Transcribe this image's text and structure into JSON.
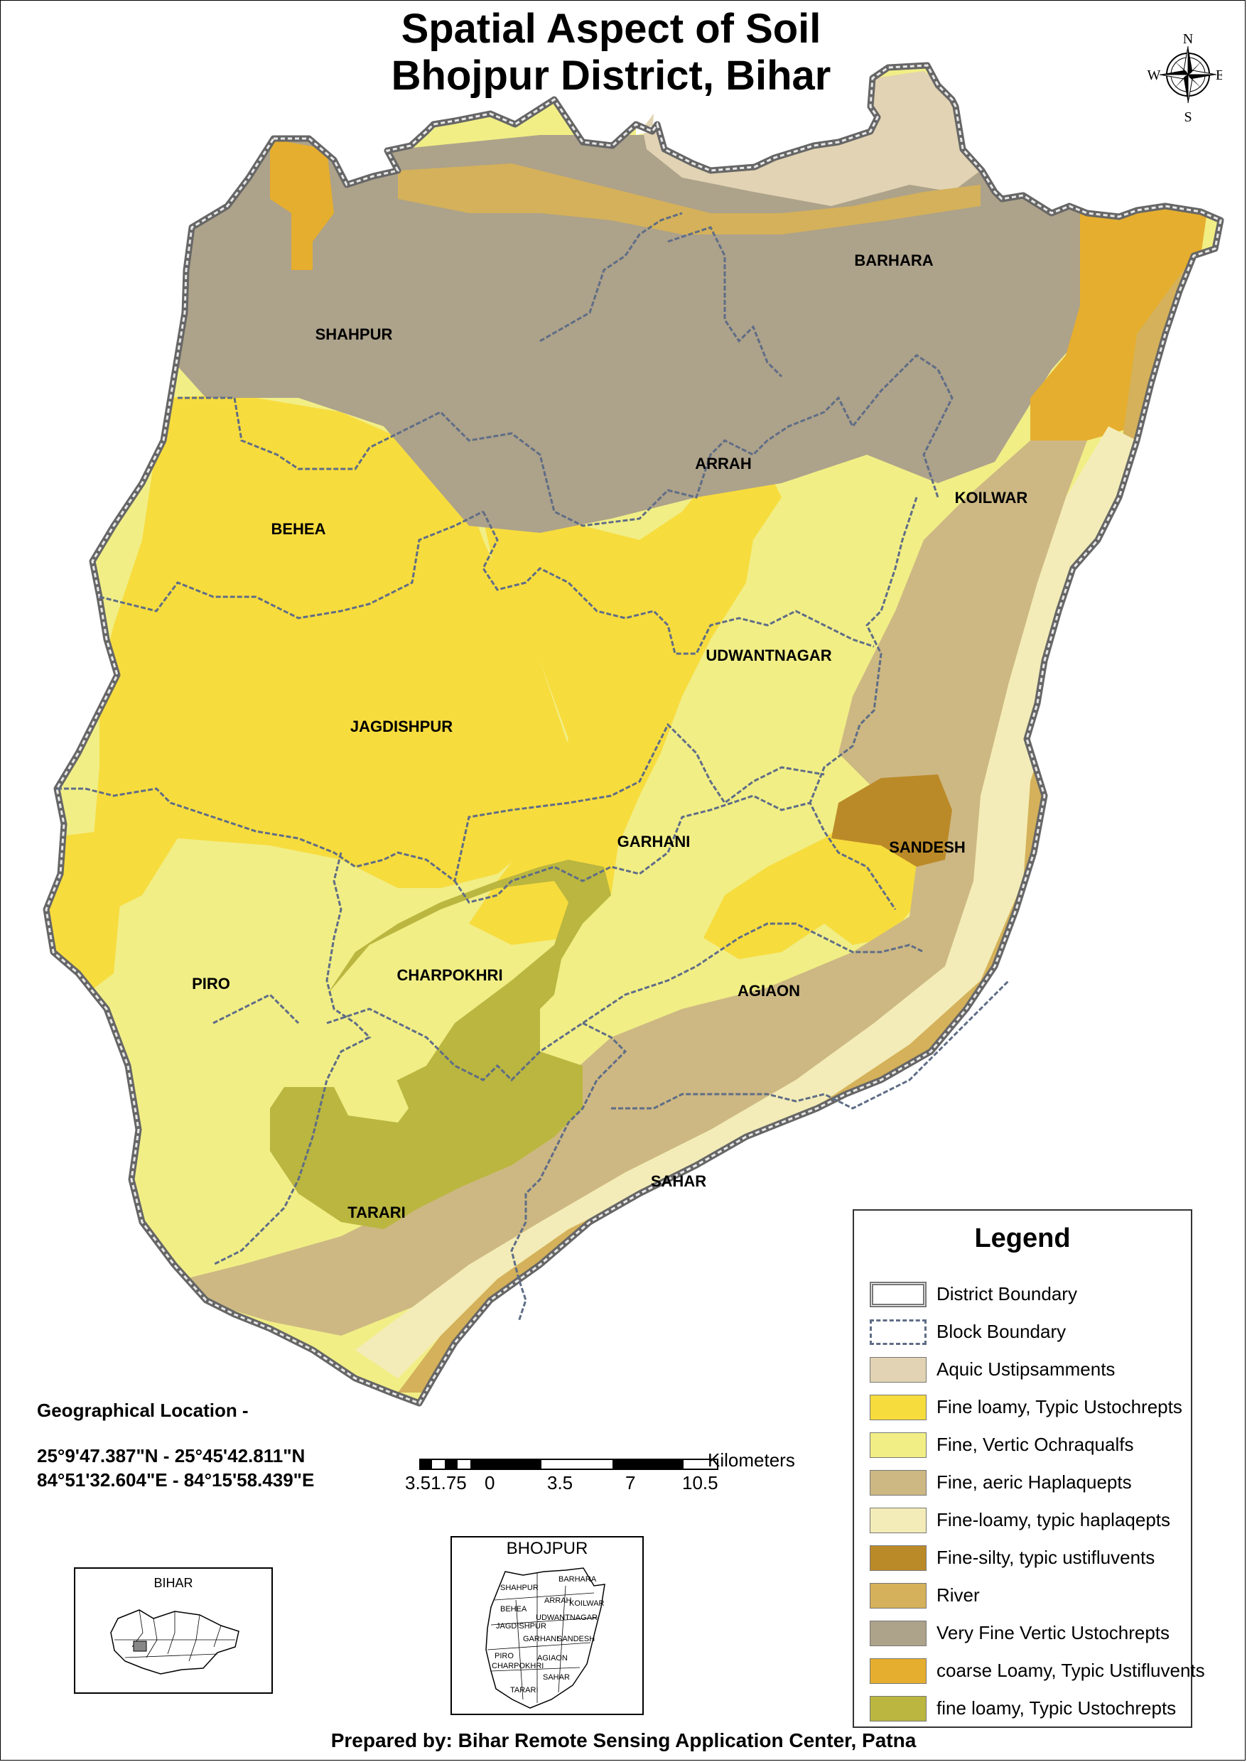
{
  "title_line1": "Spatial Aspect of Soil",
  "title_line2": "Bhojpur District, Bihar",
  "compass": {
    "n": "N",
    "s": "S",
    "e": "E",
    "w": "W"
  },
  "blocks": [
    "SHAHPUR",
    "BARHARA",
    "ARRAH",
    "KOILWAR",
    "BEHEA",
    "UDWANTNAGAR",
    "JAGDISHPUR",
    "GARHANI",
    "SANDESH",
    "PIRO",
    "CHARPOKHRI",
    "AGIAON",
    "SAHAR",
    "TARARI"
  ],
  "colors": {
    "aquic": "#e1d3b3",
    "fine_loamy_typic": "#f7dc3e",
    "fine_vertic": "#f1ee86",
    "aeric": "#cdb883",
    "fine_loamy_haplaqepts": "#f3ecb8",
    "silty": "#bb8a28",
    "river": "#d4b15a",
    "very_fine": "#ada28a",
    "coarse": "#e6ae2e",
    "fine_loamy_lower": "#bab63f"
  },
  "geo": {
    "heading": "Geographical Location -",
    "lat": "25°9'47.387\"N - 25°45'42.811\"N",
    "lon": "84°51'32.604\"E - 84°15'58.439\"E"
  },
  "scale": {
    "unit": "Kilometers",
    "ticks": [
      "3.51.75",
      "0",
      "3.5",
      "7",
      "10.5"
    ]
  },
  "legend": {
    "title": "Legend",
    "items": [
      {
        "label": "District Boundary",
        "type": "district"
      },
      {
        "label": "Block Boundary",
        "type": "block"
      },
      {
        "label": "Aquic Ustipsamments",
        "color": "#e1d3b3"
      },
      {
        "label": "Fine loamy, Typic Ustochrepts",
        "color": "#f7dc3e"
      },
      {
        "label": "Fine, Vertic Ochraqualfs",
        "color": "#f1ee86"
      },
      {
        "label": "Fine, aeric Haplaquepts",
        "color": "#cdb883"
      },
      {
        "label": "Fine-loamy, typic haplaqepts",
        "color": "#f3ecb8"
      },
      {
        "label": "Fine-silty, typic ustifluvents",
        "color": "#bb8a28"
      },
      {
        "label": "River",
        "color": "#d4b15a"
      },
      {
        "label": "Very Fine Vertic Ustochrepts",
        "color": "#ada28a"
      },
      {
        "label": "coarse Loamy, Typic Ustifluvents",
        "color": "#e6ae2e"
      },
      {
        "label": "fine loamy, Typic Ustochrepts",
        "color": "#bab63f"
      }
    ]
  },
  "inset_bihar": {
    "label": "BIHAR"
  },
  "inset_bhojpur": {
    "label": "BHOJPUR"
  },
  "footer": "Prepared by: Bihar Remote Sensing Application Center, Patna"
}
